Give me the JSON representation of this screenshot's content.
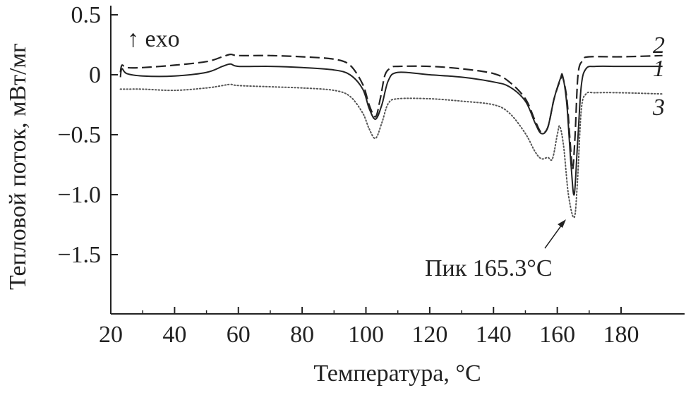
{
  "chart_data": {
    "type": "line",
    "title": "",
    "xlabel": "Температура, °C",
    "ylabel": "Тепловой поток, мВт/мг",
    "xlim": [
      20,
      193
    ],
    "ylim": [
      -2.0,
      0.5
    ],
    "xticks": [
      20,
      40,
      60,
      80,
      100,
      120,
      140,
      160,
      180
    ],
    "yticks": [
      0.5,
      0,
      -0.5,
      -1.0,
      -1.5
    ],
    "ytick_labels": [
      "0.5",
      "0",
      "−0.5",
      "−1.0",
      "−1.5"
    ],
    "grid": false,
    "exo_label": "↑ exo",
    "annotation": {
      "text": "Пик 165.3°C",
      "x": 165.3,
      "y": -1.19
    },
    "series": [
      {
        "name": "1",
        "style": "solid",
        "x": [
          23,
          23.5,
          25,
          30,
          40,
          50,
          55,
          57.5,
          60,
          70,
          80,
          90,
          95,
          99,
          101,
          103,
          105,
          107,
          110,
          120,
          130,
          140,
          145,
          150,
          153,
          155,
          157,
          159,
          161,
          161.7,
          163,
          164.3,
          165.3,
          166.3,
          167.5,
          169,
          172,
          180,
          193
        ],
        "y": [
          -0.02,
          0.05,
          0.01,
          -0.01,
          -0.01,
          0.02,
          0.07,
          0.09,
          0.07,
          0.07,
          0.06,
          0.04,
          0.0,
          -0.12,
          -0.28,
          -0.37,
          -0.25,
          -0.05,
          0.02,
          0.0,
          -0.02,
          -0.06,
          -0.1,
          -0.22,
          -0.4,
          -0.49,
          -0.44,
          -0.2,
          -0.03,
          -0.01,
          -0.25,
          -0.75,
          -1.0,
          -0.6,
          -0.1,
          0.05,
          0.07,
          0.07,
          0.07
        ]
      },
      {
        "name": "2",
        "style": "dashed",
        "x": [
          23,
          23.5,
          25,
          30,
          40,
          50,
          55,
          57.5,
          60,
          70,
          80,
          90,
          95,
          99,
          101,
          103,
          104.5,
          106,
          108,
          110,
          120,
          130,
          140,
          145,
          150,
          153,
          155,
          157,
          159,
          161,
          161.7,
          163,
          164,
          164.8,
          165.6,
          166.5,
          168,
          170,
          180,
          193
        ],
        "y": [
          0.02,
          0.08,
          0.06,
          0.06,
          0.08,
          0.11,
          0.15,
          0.17,
          0.16,
          0.16,
          0.15,
          0.13,
          0.08,
          -0.08,
          -0.25,
          -0.35,
          -0.2,
          0.0,
          0.06,
          0.07,
          0.07,
          0.05,
          0.01,
          -0.06,
          -0.2,
          -0.38,
          -0.48,
          -0.44,
          -0.2,
          -0.04,
          -0.02,
          -0.2,
          -0.55,
          -0.79,
          -0.5,
          0.0,
          0.12,
          0.15,
          0.15,
          0.16
        ]
      },
      {
        "name": "3",
        "style": "dotted",
        "x": [
          23,
          25,
          30,
          40,
          50,
          55,
          57.5,
          60,
          70,
          80,
          90,
          95,
          99,
          101,
          103,
          105,
          107,
          110,
          120,
          130,
          140,
          145,
          150,
          153,
          155,
          157,
          158.5,
          160,
          160.8,
          162,
          163.5,
          165.3,
          166.3,
          167.5,
          169,
          172,
          180,
          193
        ],
        "y": [
          -0.12,
          -0.12,
          -0.12,
          -0.13,
          -0.11,
          -0.09,
          -0.08,
          -0.09,
          -0.1,
          -0.11,
          -0.13,
          -0.18,
          -0.32,
          -0.45,
          -0.53,
          -0.4,
          -0.24,
          -0.2,
          -0.2,
          -0.22,
          -0.25,
          -0.32,
          -0.49,
          -0.64,
          -0.7,
          -0.69,
          -0.7,
          -0.5,
          -0.43,
          -0.6,
          -1.0,
          -1.19,
          -0.9,
          -0.3,
          -0.16,
          -0.15,
          -0.15,
          -0.16
        ]
      }
    ]
  }
}
